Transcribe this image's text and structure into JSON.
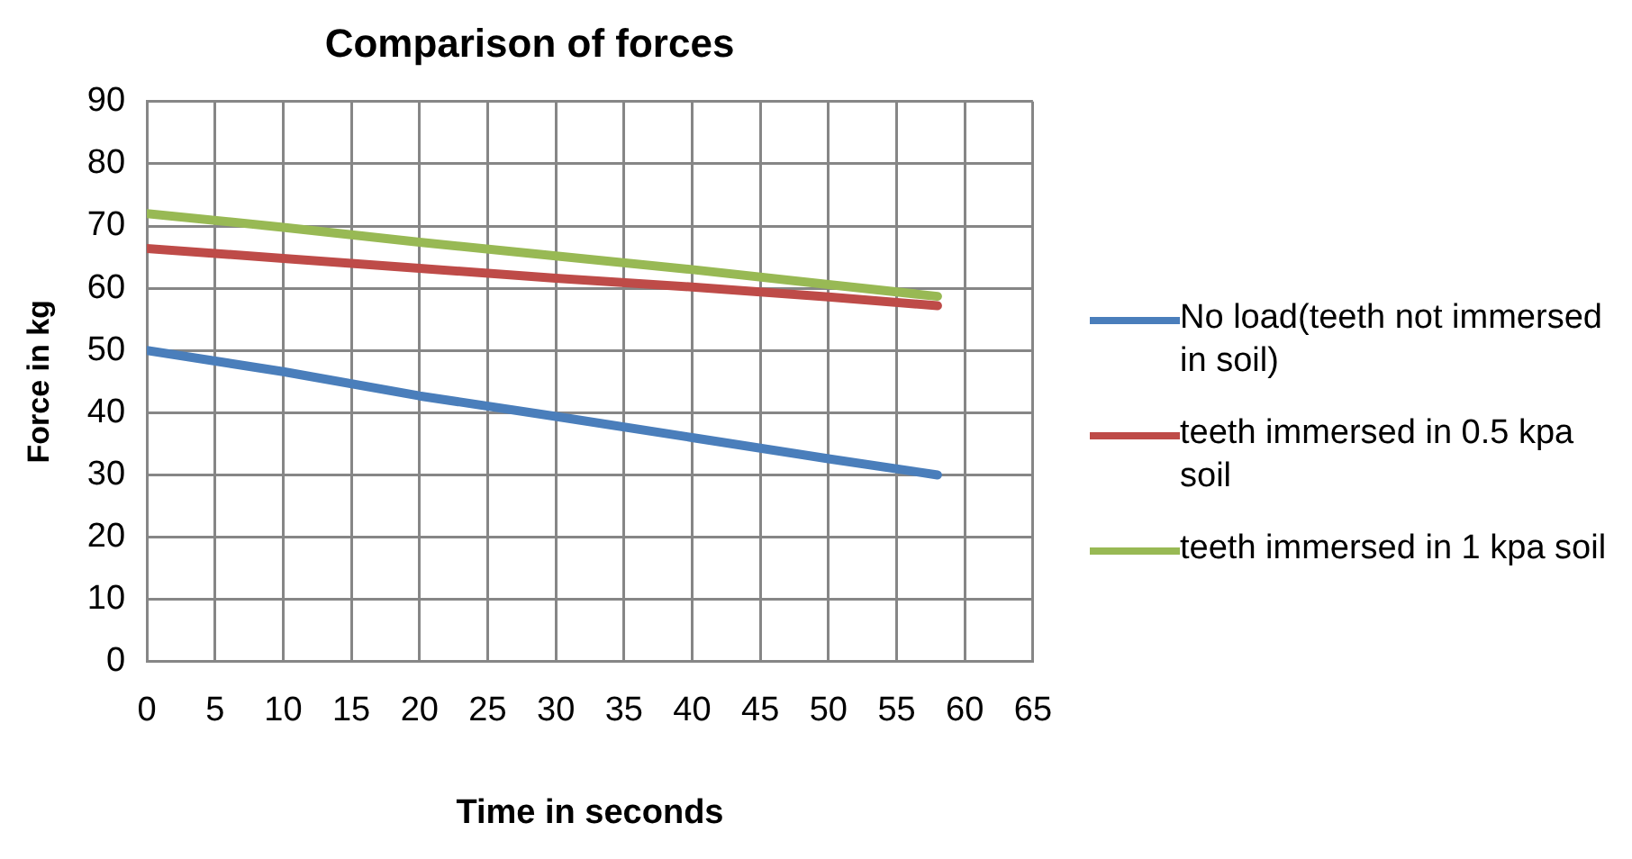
{
  "chart_data": {
    "type": "line",
    "title": "Comparison of forces",
    "xlabel": "Time in seconds",
    "ylabel": "Force in kg",
    "x": [
      0,
      10,
      20,
      30,
      40,
      50,
      58
    ],
    "series": [
      {
        "name": "No load(teeth not immersed in soil)",
        "color": "#4a7ebb",
        "values": [
          50,
          46.6,
          42.7,
          39.4,
          36,
          32.6,
          30
        ]
      },
      {
        "name": "teeth immersed in 0.5 kpa soil",
        "color": "#be4b48",
        "values": [
          66.4,
          64.8,
          63.2,
          61.6,
          60.2,
          58.6,
          57.2
        ]
      },
      {
        "name": "teeth immersed in 1 kpa soil",
        "color": "#98b954",
        "values": [
          72,
          69.8,
          67.4,
          65.2,
          63,
          60.6,
          58.7
        ]
      }
    ],
    "xlim": [
      0,
      65
    ],
    "xticks": [
      0,
      5,
      10,
      15,
      20,
      25,
      30,
      35,
      40,
      45,
      50,
      55,
      60,
      65
    ],
    "ylim": [
      0,
      90
    ],
    "yticks": [
      0,
      10,
      20,
      30,
      40,
      50,
      60,
      70,
      80,
      90
    ],
    "grid": true,
    "legend": "right",
    "marker": "none",
    "line_style": "solid"
  }
}
